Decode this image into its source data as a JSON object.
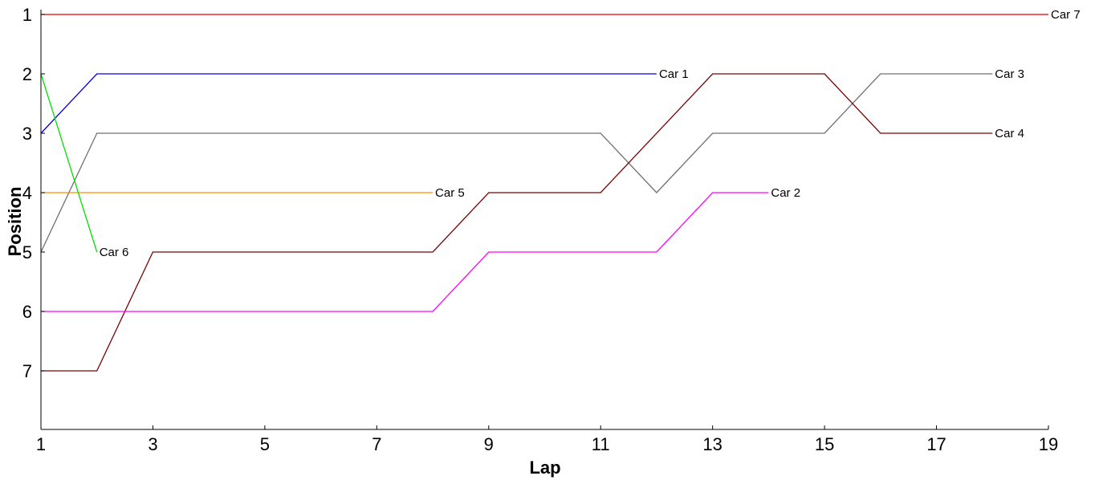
{
  "chart_data": {
    "type": "line",
    "xlabel": "Lap",
    "ylabel": "Position",
    "xlim": [
      1,
      19
    ],
    "ylim": [
      8,
      1
    ],
    "y_inverted": true,
    "xticks": [
      1,
      3,
      5,
      7,
      9,
      11,
      13,
      15,
      17,
      19
    ],
    "yticks": [
      1,
      2,
      3,
      4,
      5,
      6,
      7
    ],
    "grid": false,
    "legend": "none (series labelled at line ends)",
    "series": [
      {
        "name": "Car 7",
        "color": "#e00000",
        "x": [
          1,
          19
        ],
        "y": [
          1,
          1
        ]
      },
      {
        "name": "Car 1",
        "color": "#0000e0",
        "x": [
          1,
          2,
          12
        ],
        "y": [
          3,
          2,
          2
        ]
      },
      {
        "name": "Car 3",
        "color": "#707070",
        "x": [
          1,
          2,
          11,
          12,
          13,
          15,
          16,
          18
        ],
        "y": [
          5,
          3,
          3,
          4,
          3,
          3,
          2,
          2
        ]
      },
      {
        "name": "Car 4",
        "color": "#7a0000",
        "x": [
          1,
          2,
          3,
          8,
          9,
          11,
          13,
          15,
          16,
          18
        ],
        "y": [
          7,
          7,
          5,
          5,
          4,
          4,
          2,
          2,
          3,
          3
        ]
      },
      {
        "name": "Car 5",
        "color": "#ff8c00",
        "x": [
          1,
          8
        ],
        "y": [
          4,
          4
        ]
      },
      {
        "name": "Car 2",
        "color": "#ff00ff",
        "x": [
          1,
          8,
          9,
          12,
          13,
          14
        ],
        "y": [
          6,
          6,
          5,
          5,
          4,
          4
        ]
      },
      {
        "name": "Car 6",
        "color": "#00e000",
        "x": [
          1,
          2
        ],
        "y": [
          2,
          5
        ]
      }
    ]
  }
}
